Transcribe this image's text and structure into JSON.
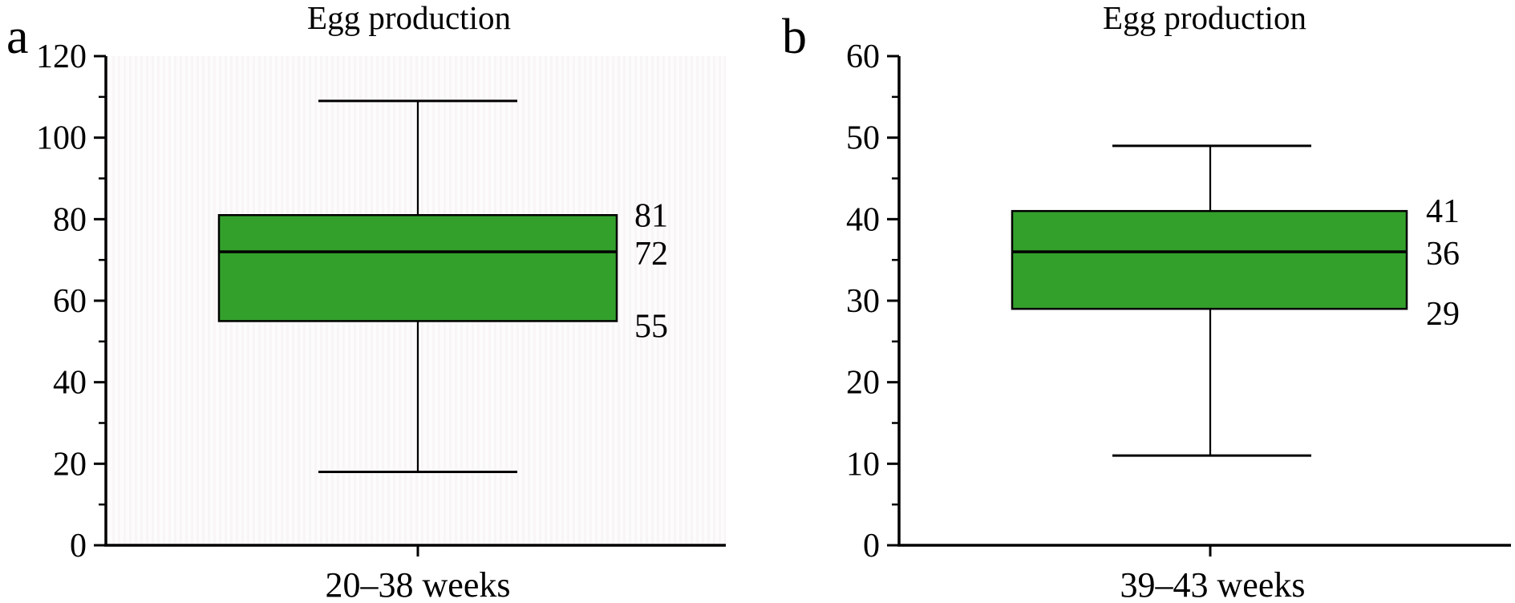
{
  "chart_data": [
    {
      "type": "boxplot",
      "panel_letter": "a",
      "title": "Egg production",
      "category": "20–38 weeks",
      "ylim": [
        0,
        120
      ],
      "y_major_step": 20,
      "y_minor_step": 10,
      "y_tick_labels": [
        "0",
        "20",
        "40",
        "60",
        "80",
        "100",
        "120"
      ],
      "stats": {
        "whisker_low": 18,
        "q1": 55,
        "median": 72,
        "q3": 81,
        "whisker_high": 109
      },
      "value_labels": [
        "81",
        "72",
        "55"
      ],
      "value_labels_stats": [
        "q3",
        "median",
        "q1"
      ],
      "grid": false,
      "legend": "none"
    },
    {
      "type": "boxplot",
      "panel_letter": "b",
      "title": "Egg production",
      "category": "39–43 weeks",
      "ylim": [
        0,
        60
      ],
      "y_major_step": 10,
      "y_minor_step": 5,
      "y_tick_labels": [
        "0",
        "10",
        "20",
        "30",
        "40",
        "50",
        "60"
      ],
      "stats": {
        "whisker_low": 11,
        "q1": 29,
        "median": 36,
        "q3": 41,
        "whisker_high": 49
      },
      "value_labels": [
        "41",
        "36",
        "29"
      ],
      "value_labels_stats": [
        "q3",
        "median",
        "q1"
      ],
      "grid": false,
      "legend": "none"
    }
  ],
  "colors": {
    "box_fill": "#33a02c",
    "line": "#000000",
    "text": "#000000",
    "background": "#ffffff"
  }
}
